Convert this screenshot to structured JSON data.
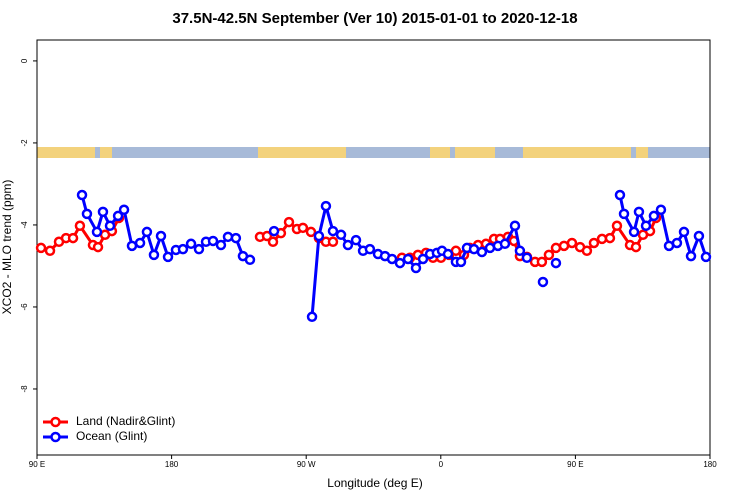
{
  "chart_data": {
    "type": "line",
    "title": "37.5N-42.5N September (Ver 10)   2015-01-01 to 2020-12-18",
    "x_label": "Longitude (deg E)",
    "y_label": "XCO2 - MLO trend (ppm)",
    "xlim": [
      90,
      540
    ],
    "ylim": [
      -9.61,
      0.51
    ],
    "xticks": [
      {
        "value": 90,
        "label": "90 E"
      },
      180,
      {
        "value": 270,
        "label": "90 W"
      },
      {
        "value": 360,
        "label": "0"
      },
      {
        "value": 450,
        "label": "90 E"
      },
      {
        "value": 540,
        "label": "180"
      }
    ],
    "yticks": [
      0,
      -2,
      -4,
      -6,
      -8
    ],
    "legend": "lower left",
    "series": [
      {
        "name": "Land (Nadir&Glint)",
        "color": "#ff0000",
        "x": [
          92.7,
          98.7,
          104.7,
          109.4,
          114.1,
          118.7,
          127.4,
          130.8,
          135.5,
          140.1,
          144.8,
          200,
          239.1,
          243.8,
          247.8,
          253.1,
          258.5,
          263.8,
          267.8,
          273.2,
          278.5,
          283.2,
          287.9,
          310,
          334.0,
          339.4,
          344.7,
          350.1,
          354.8,
          360.1,
          365.5,
          370.1,
          375.5,
          379.5,
          384.9,
          390.2,
          395.6,
          399.6,
          404.9,
          408.9,
          412.9,
          417.6,
          423.0,
          427.6,
          432.3,
          437.0,
          442.4,
          447.7,
          453.1,
          457.7,
          462.4,
          467.8,
          473.1,
          477.8,
          486.5,
          490.5,
          495.2,
          499.9,
          503.9
        ],
        "values": [
          -4.56,
          -4.63,
          -4.41,
          -4.32,
          -4.32,
          -4.02,
          -4.49,
          -4.54,
          -4.24,
          -4.15,
          -3.83,
          null,
          -4.29,
          -4.27,
          -4.41,
          -4.2,
          -3.93,
          -4.1,
          -4.07,
          -4.17,
          -4.32,
          -4.41,
          -4.41,
          null,
          -4.8,
          -4.8,
          -4.73,
          -4.68,
          -4.8,
          -4.8,
          -4.73,
          -4.63,
          -4.73,
          -4.56,
          -4.49,
          -4.46,
          -4.34,
          -4.34,
          -4.29,
          -4.39,
          -4.76,
          -4.78,
          -4.9,
          -4.9,
          -4.73,
          -4.56,
          -4.51,
          -4.44,
          -4.54,
          -4.63,
          -4.44,
          -4.34,
          -4.32,
          -4.02,
          -4.49,
          -4.54,
          -4.24,
          -4.15,
          -3.83
        ]
      },
      {
        "name": "Ocean (Glint)",
        "color": "#0000ff",
        "x": [
          120.1,
          123.4,
          130.1,
          134.1,
          138.8,
          144.2,
          148.2,
          153.5,
          158.9,
          163.5,
          168.2,
          172.9,
          177.6,
          182.9,
          187.6,
          193.0,
          198.3,
          203.0,
          207.7,
          213.0,
          217.7,
          223.0,
          227.7,
          232.4,
          240,
          248.5,
          260,
          273.9,
          278.5,
          283.2,
          287.9,
          293.3,
          297.9,
          303.3,
          308.0,
          312.6,
          318.0,
          322.7,
          327.4,
          332.7,
          338.1,
          343.4,
          348.1,
          352.8,
          357.4,
          360.8,
          364.8,
          370.1,
          373.5,
          377.5,
          382.2,
          387.5,
          392.9,
          398.2,
          402.9,
          409.6,
          412.9,
          417.6,
          420,
          428.3,
          430,
          437.0,
          470,
          479.8,
          482.5,
          489.2,
          492.5,
          497.2,
          502.5,
          507.2,
          512.6,
          517.9,
          522.6,
          527.3,
          532.6,
          537.3
        ],
        "values": [
          -3.27,
          -3.73,
          -4.17,
          -3.68,
          -4.02,
          -3.78,
          -3.63,
          -4.51,
          -4.44,
          -4.17,
          -4.73,
          -4.27,
          -4.78,
          -4.61,
          -4.59,
          -4.46,
          -4.59,
          -4.41,
          -4.39,
          -4.49,
          -4.29,
          -4.32,
          -4.76,
          -4.85,
          null,
          -4.15,
          null,
          -6.24,
          -4.27,
          -3.54,
          -4.15,
          -4.24,
          -4.49,
          -4.37,
          -4.63,
          -4.59,
          -4.71,
          -4.76,
          -4.83,
          -4.93,
          -4.83,
          -5.05,
          -4.83,
          -4.71,
          -4.68,
          -4.63,
          -4.71,
          -4.9,
          -4.9,
          -4.56,
          -4.59,
          -4.66,
          -4.56,
          -4.51,
          -4.46,
          -4.02,
          -4.63,
          -4.8,
          null,
          -5.39,
          null,
          -4.93,
          null,
          -3.27,
          -3.73,
          -4.17,
          -3.68,
          -4.02,
          -3.78,
          -3.63,
          -4.51,
          -4.44,
          -4.17,
          -4.76,
          -4.27,
          -4.78
        ]
      }
    ]
  }
}
